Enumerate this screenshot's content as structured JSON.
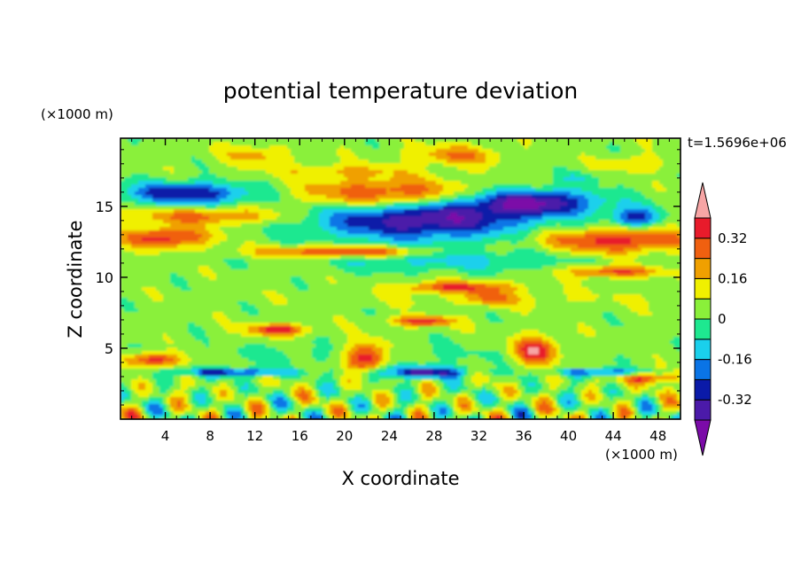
{
  "chart_data": {
    "type": "heatmap",
    "title": "potential temperature deviation",
    "xlabel": "X coordinate",
    "ylabel": "Z coordinate",
    "x_unit_label": "(×1000 m)",
    "y_unit_label": "(×1000 m)",
    "time_label": "t=1.5696e+06",
    "xlim": [
      0,
      50
    ],
    "ylim": [
      0,
      19.8
    ],
    "x_ticks": [
      4,
      8,
      12,
      16,
      20,
      24,
      28,
      32,
      36,
      40,
      44,
      48
    ],
    "x_tick_labels": [
      "4",
      "8",
      "12",
      "16",
      "20",
      "24",
      "28",
      "32",
      "36",
      "40",
      "44",
      "48"
    ],
    "y_ticks": [
      5,
      10,
      15
    ],
    "y_tick_labels": [
      "5",
      "10",
      "15"
    ],
    "colorbar": {
      "levels": [
        -0.4,
        -0.32,
        -0.24,
        -0.16,
        -0.08,
        0,
        0.08,
        0.16,
        0.24,
        0.32,
        0.4
      ],
      "colors": [
        "#7b0ba8",
        "#4b1aa9",
        "#0a1aa8",
        "#0a74e6",
        "#1ad0ec",
        "#1ee890",
        "#8af03a",
        "#f0f000",
        "#f0a000",
        "#f06010",
        "#e81b2b",
        "#f7a5a5"
      ],
      "labels": [
        "0.32",
        "0.16",
        "0",
        "-0.16",
        "-0.32"
      ],
      "label_values": [
        0.32,
        0.16,
        0,
        -0.16,
        -0.32
      ]
    },
    "features": [
      {
        "x": 12,
        "y": 18.6,
        "rx": 3,
        "ry": 0.7,
        "v": 0.15
      },
      {
        "x": 30,
        "y": 18.6,
        "rx": 4,
        "ry": 0.7,
        "v": 0.2
      },
      {
        "x": 20,
        "y": 17.5,
        "rx": 6,
        "ry": 0.5,
        "v": 0.12
      },
      {
        "x": 46,
        "y": 18,
        "rx": 2.5,
        "ry": 0.6,
        "v": 0.12
      },
      {
        "x": 41,
        "y": 17,
        "rx": 2,
        "ry": 0.4,
        "v": -0.1
      },
      {
        "x": 6,
        "y": 15.9,
        "rx": 6,
        "ry": 0.8,
        "v": -0.36
      },
      {
        "x": 27,
        "y": 14.2,
        "rx": 10,
        "ry": 1.6,
        "v": -0.45
      },
      {
        "x": 37,
        "y": 15.3,
        "rx": 6,
        "ry": 0.9,
        "v": -0.38
      },
      {
        "x": 46,
        "y": 14.2,
        "rx": 2,
        "ry": 0.7,
        "v": -0.34
      },
      {
        "x": 29,
        "y": 11.2,
        "rx": 12,
        "ry": 0.8,
        "v": -0.14
      },
      {
        "x": 36,
        "y": 8.5,
        "rx": 14,
        "ry": 0.6,
        "v": 0.05
      },
      {
        "x": 24,
        "y": 15.8,
        "rx": 8,
        "ry": 1.1,
        "v": 0.38
      },
      {
        "x": 4,
        "y": 12.8,
        "rx": 4,
        "ry": 0.7,
        "v": 0.34
      },
      {
        "x": 20,
        "y": 11.8,
        "rx": 7,
        "ry": 0.4,
        "v": 0.38
      },
      {
        "x": 44,
        "y": 12.6,
        "rx": 7,
        "ry": 0.9,
        "v": 0.33
      },
      {
        "x": 8,
        "y": 14.3,
        "rx": 7,
        "ry": 0.6,
        "v": 0.24
      },
      {
        "x": 30,
        "y": 9.3,
        "rx": 5,
        "ry": 0.4,
        "v": 0.3
      },
      {
        "x": 44,
        "y": 10.4,
        "rx": 4,
        "ry": 0.4,
        "v": 0.3
      },
      {
        "x": 33,
        "y": 8.5,
        "rx": 2,
        "ry": 0.5,
        "v": 0.2
      },
      {
        "x": 14,
        "y": 6.3,
        "rx": 2.5,
        "ry": 0.4,
        "v": 0.37
      },
      {
        "x": 27,
        "y": 6.9,
        "rx": 2.5,
        "ry": 0.35,
        "v": 0.36
      },
      {
        "x": 3,
        "y": 4.2,
        "rx": 2.5,
        "ry": 0.5,
        "v": 0.36
      },
      {
        "x": 22,
        "y": 4.4,
        "rx": 2,
        "ry": 1.0,
        "v": 0.38
      },
      {
        "x": 37,
        "y": 4.8,
        "rx": 2,
        "ry": 1.0,
        "v": 0.37
      },
      {
        "x": 47,
        "y": 3.0,
        "rx": 2.5,
        "ry": 0.5,
        "v": 0.34
      },
      {
        "x": 27,
        "y": 3.3,
        "rx": 4,
        "ry": 0.4,
        "v": -0.4
      },
      {
        "x": 10,
        "y": 3.3,
        "rx": 5,
        "ry": 0.3,
        "v": -0.32
      },
      {
        "x": 44,
        "y": 3.3,
        "rx": 5,
        "ry": 0.3,
        "v": -0.3
      },
      {
        "x": 20,
        "y": 4.5,
        "rx": 20,
        "ry": 0.8,
        "v": -0.06
      }
    ],
    "near_surface_wave_amplitude": 0.3
  }
}
